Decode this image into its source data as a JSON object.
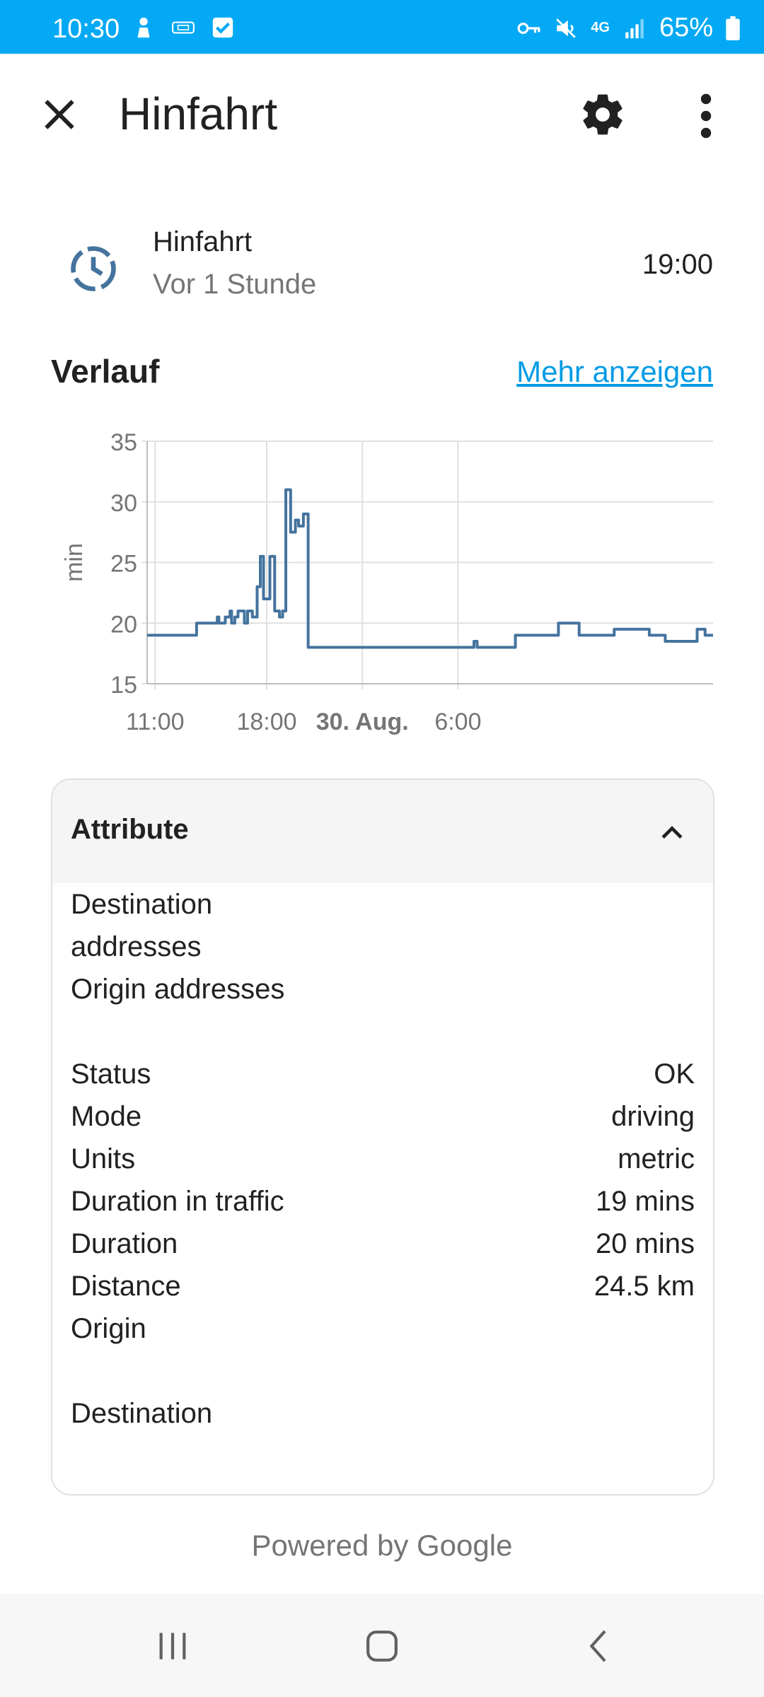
{
  "status_bar": {
    "time": "10:30",
    "network": "4G",
    "battery": "65%",
    "icons_left": [
      "person-icon",
      "media-icon",
      "checkbox-icon"
    ],
    "icons_right": [
      "key-icon",
      "muted-icon",
      "network-4g-icon",
      "signal-icon",
      "battery-icon"
    ]
  },
  "app_bar": {
    "title": "Hinfahrt",
    "close_icon": "close-icon",
    "settings_icon": "gear-icon",
    "more_icon": "more-vertical-icon"
  },
  "entity": {
    "name": "Hinfahrt",
    "subtitle": "Vor 1 Stunde",
    "value": "19:00",
    "icon": "clock-icon"
  },
  "history": {
    "title": "Verlauf",
    "more_link": "Mehr anzeigen"
  },
  "chart_data": {
    "type": "line",
    "ylabel": "min",
    "ylim": [
      15,
      35
    ],
    "yticks": [
      "35",
      "30",
      "25",
      "20",
      "15"
    ],
    "xtick_labels": [
      "11:00",
      "18:00",
      "30. Aug.",
      "6:00"
    ],
    "xtick_bold": [
      false,
      false,
      true,
      false
    ],
    "x_hours": [
      10.5,
      13.4,
      13.6,
      14.2,
      14.5,
      14.9,
      15.0,
      15.4,
      15.7,
      15.8,
      16.0,
      16.2,
      16.6,
      16.8,
      17.1,
      17.4,
      17.6,
      17.8,
      18.0,
      18.2,
      18.5,
      18.8,
      19.0,
      19.2,
      19.5,
      19.8,
      20.0,
      20.3,
      20.6,
      21.0,
      24.0,
      30.0,
      31.0,
      31.2,
      33.3,
      33.6,
      36.0,
      36.3,
      37.3,
      37.6,
      39.4,
      39.8,
      42.0,
      42.3,
      43.0,
      44.3,
      44.6,
      45.0,
      45.5,
      46.0
    ],
    "y_min": [
      19,
      19,
      20,
      20,
      20,
      20.5,
      20,
      20.5,
      21,
      20,
      20.5,
      21,
      20,
      21,
      20.5,
      23,
      25.5,
      22,
      22,
      25.5,
      21,
      20.5,
      21,
      31,
      27.5,
      28.5,
      28,
      29,
      18,
      18,
      18,
      18,
      18.5,
      18,
      18,
      19,
      19,
      20,
      20,
      19,
      19,
      19.5,
      19,
      19,
      18.5,
      18.5,
      18.5,
      19.5,
      19,
      19
    ],
    "grid": true,
    "series": [
      {
        "name": "",
        "color": "#44739e"
      }
    ]
  },
  "attributes": {
    "header": "Attribute",
    "expanded_icon": "chevron-up-icon",
    "rows": [
      {
        "key": "Destination",
        "value": ""
      },
      {
        "key": "addresses",
        "value": ""
      },
      {
        "key": "Origin addresses",
        "value": ""
      },
      {
        "key": "Status",
        "value": "OK"
      },
      {
        "key": "Mode",
        "value": "driving"
      },
      {
        "key": "Units",
        "value": "metric"
      },
      {
        "key": "Duration in traffic",
        "value": "19 mins"
      },
      {
        "key": "Duration",
        "value": "20 mins"
      },
      {
        "key": "Distance",
        "value": "24.5 km"
      },
      {
        "key": "Origin",
        "value": ""
      },
      {
        "key": "Destination",
        "value": ""
      }
    ]
  },
  "footer": {
    "powered_by": "Powered by Google"
  },
  "nav_bar": {
    "recents_icon": "recents-icon",
    "home_icon": "home-icon",
    "back_icon": "back-icon"
  }
}
